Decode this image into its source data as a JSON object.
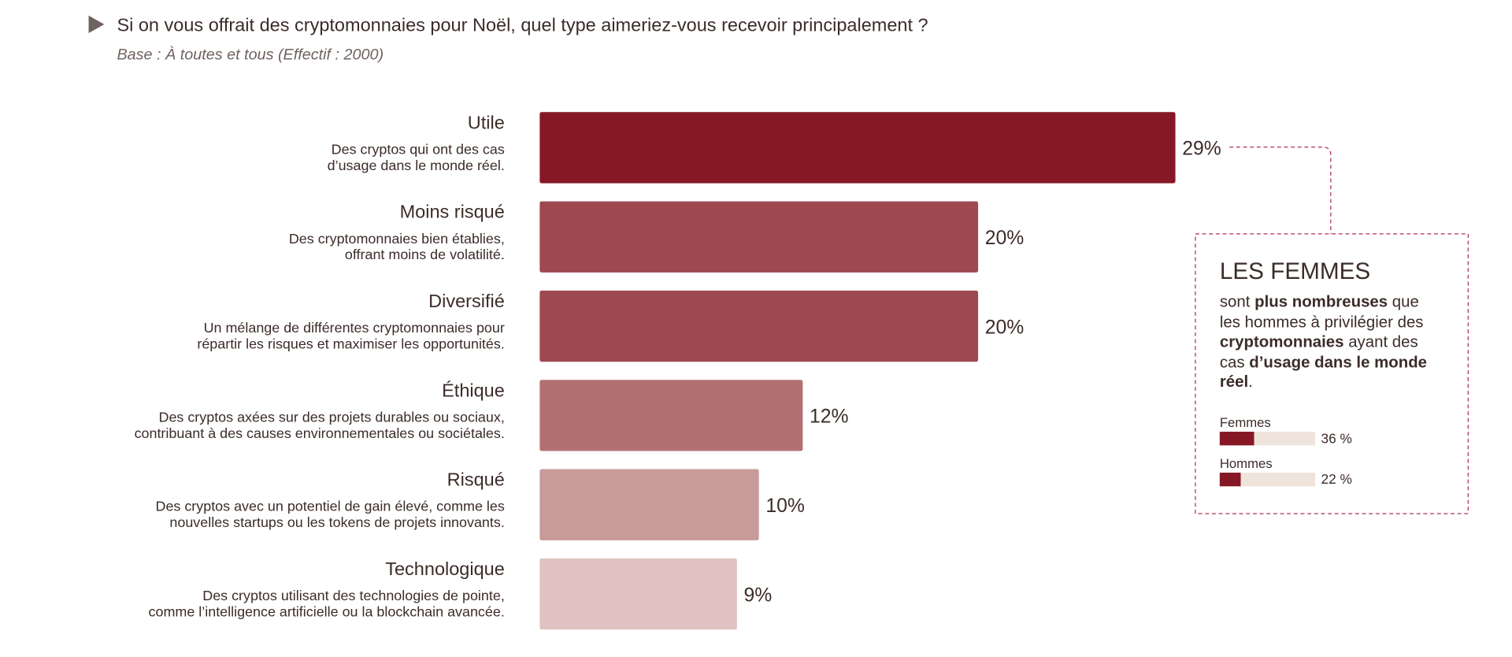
{
  "chart_data": [
    {
      "type": "bar",
      "orientation": "horizontal",
      "title": "Si on vous offrait des cryptomonnaies pour Noël, quel type aimeriez-vous recevoir principalement ?",
      "subtitle": "Base : À toutes et tous (Effectif : 2000)",
      "categories": [
        "Utile",
        "Moins risqué",
        "Diversifié",
        "Éthique",
        "Risqué",
        "Technologique"
      ],
      "descriptions": [
        [
          "Des cryptos qui ont des cas",
          "d’usage dans le monde réel."
        ],
        [
          "Des cryptomonnaies bien établies,",
          "offrant moins de volatilité."
        ],
        [
          "Un mélange de différentes cryptomonnaies pour",
          "répartir les risques et maximiser les opportunités."
        ],
        [
          "Des cryptos axées sur des projets durables ou sociaux,",
          "contribuant à des causes environnementales ou sociétales."
        ],
        [
          "Des cryptos avec un potentiel de gain élevé, comme les",
          "nouvelles startups ou les tokens de projets innovants."
        ],
        [
          "Des cryptos utilisant des technologies de pointe,",
          "comme l’intelligence artificielle ou la blockchain avancée."
        ]
      ],
      "values": [
        29,
        20,
        20,
        12,
        10,
        9
      ],
      "value_labels": [
        "29%",
        "20%",
        "20%",
        "12%",
        "10%",
        "9%"
      ],
      "colors": [
        "#861826",
        "#9e4850",
        "#9e4850",
        "#b37072",
        "#c99a9a",
        "#e0c3c0"
      ]
    },
    {
      "type": "bar",
      "orientation": "horizontal",
      "title": "LES FEMMES",
      "text": [
        {
          "text": "sont ",
          "bold": false
        },
        {
          "text": "plus nombreuses",
          "bold": true
        },
        {
          "text": " que les hommes à privilégier des ",
          "bold": false
        },
        {
          "text": "cryptomonnaies",
          "bold": true
        },
        {
          "text": " ayant des cas ",
          "bold": false
        },
        {
          "text": "d’usage dans le monde réel",
          "bold": true
        },
        {
          "text": ".",
          "bold": false
        }
      ],
      "categories": [
        "Femmes",
        "Hommes"
      ],
      "values": [
        36,
        22
      ],
      "value_labels": [
        "36 %",
        "22 %"
      ],
      "color": "#861826",
      "track_color": "#efe4dc"
    }
  ]
}
